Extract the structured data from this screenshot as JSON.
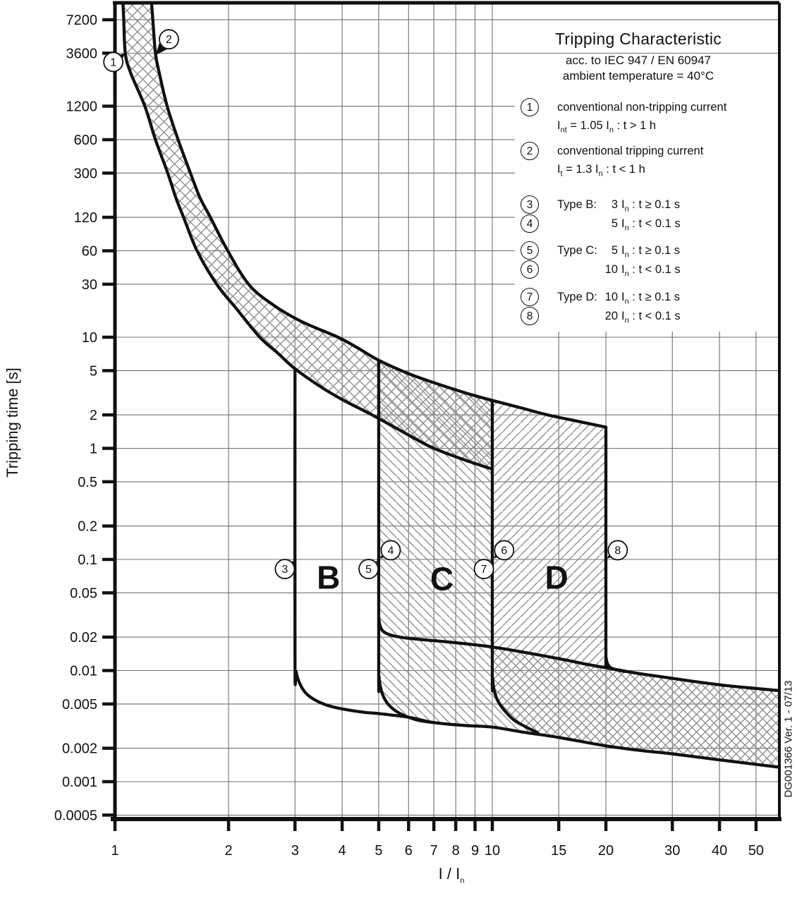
{
  "doc_number": "DG001366 Ver. 1 - 07/13",
  "title_block": {
    "title": "Tripping Characteristic",
    "subtitle_standard": "acc. to IEC 947 / EN 60947",
    "subtitle_temperature": "ambient temperature = 40°C"
  },
  "legend": {
    "items": [
      {
        "kind": "note",
        "num": "1",
        "line1": [
          {
            "t": "conventional non-tripping current"
          }
        ],
        "line2": [
          {
            "t": "I"
          },
          {
            "sub": "nt"
          },
          {
            "t": "  = 1.05 "
          },
          {
            "t": "I"
          },
          {
            "sub": "n"
          },
          {
            "t": " :  t > 1 h"
          }
        ]
      },
      {
        "kind": "note",
        "num": "2",
        "line1": [
          {
            "t": "conventional tripping current"
          }
        ],
        "line2": [
          {
            "t": "I"
          },
          {
            "sub": "t"
          },
          {
            "t": "  = 1.3 "
          },
          {
            "t": "I"
          },
          {
            "sub": "n"
          },
          {
            "t": " :  t < 1 h"
          }
        ]
      },
      {
        "kind": "type",
        "nums": [
          "3",
          "4"
        ],
        "type_label": "Type B:",
        "values": [
          {
            "num": "3",
            "rest": " : t ≥ 0.1 s"
          },
          {
            "num": "5",
            "rest": " : t < 0.1 s"
          }
        ]
      },
      {
        "kind": "type",
        "nums": [
          "5",
          "6"
        ],
        "type_label": "Type C:",
        "values": [
          {
            "num": "5",
            "rest": " : t ≥ 0.1 s"
          },
          {
            "num": "10",
            "rest": " : t < 0.1 s"
          }
        ]
      },
      {
        "kind": "type",
        "nums": [
          "7",
          "8"
        ],
        "type_label": "Type D:",
        "values": [
          {
            "num": "10",
            "rest": " : t ≥ 0.1 s"
          },
          {
            "num": "20",
            "rest": " : t < 0.1 s"
          }
        ]
      }
    ]
  },
  "chart_data": {
    "type": "line",
    "scale": "log-log",
    "title": "Tripping Characteristic",
    "xlabel_main": "I / I",
    "xlabel_sub": "n",
    "ylabel": "Tripping time [s]",
    "x_ticks": [
      "1",
      "2",
      "3",
      "4",
      "5",
      "6",
      "7",
      "8",
      "9",
      "10",
      "15",
      "20",
      "30",
      "40",
      "50"
    ],
    "y_ticks": [
      "7200",
      "3600",
      "1200",
      "600",
      "300",
      "120",
      "60",
      "30",
      "10",
      "5",
      "2",
      "1",
      "0.5",
      "0.2",
      "0.1",
      "0.05",
      "0.02",
      "0.01",
      "0.005",
      "0.002",
      "0.001",
      "0.0005"
    ],
    "x_range": [
      1,
      57.5
    ],
    "y_range": [
      0.00046,
      10200
    ],
    "grid": "major-both",
    "region_letters": [
      {
        "label": "B",
        "x": 3.68,
        "t": 0.069
      },
      {
        "label": "C",
        "x": 7.35,
        "t": 0.067
      },
      {
        "label": "D",
        "x": 14.8,
        "t": 0.069
      }
    ],
    "markers": [
      {
        "n": "1",
        "at": [
          0.99,
          3000
        ],
        "tip": [
          1.068,
          3600
        ]
      },
      {
        "n": "2",
        "at": [
          1.39,
          4800
        ],
        "tip": [
          1.28,
          3450
        ]
      },
      {
        "n": "3",
        "at": [
          2.82,
          0.082
        ],
        "tip": [
          2.99,
          0.0975
        ]
      },
      {
        "n": "4",
        "at": [
          5.38,
          0.121
        ],
        "tip": [
          5.03,
          0.102
        ]
      },
      {
        "n": "5",
        "at": [
          4.7,
          0.082
        ],
        "tip": [
          4.97,
          0.0975
        ]
      },
      {
        "n": "6",
        "at": [
          10.75,
          0.121
        ],
        "tip": [
          10.06,
          0.102
        ]
      },
      {
        "n": "7",
        "at": [
          9.5,
          0.082
        ],
        "tip": [
          9.94,
          0.0975
        ]
      },
      {
        "n": "8",
        "at": [
          21.5,
          0.121
        ],
        "tip": [
          20.12,
          0.102
        ]
      }
    ],
    "series": {
      "thermal_lower": [
        [
          1.05,
          10200
        ],
        [
          1.055,
          7200
        ],
        [
          1.065,
          3600
        ],
        [
          1.1,
          2400
        ],
        [
          1.2,
          1200
        ],
        [
          1.28,
          600
        ],
        [
          1.38,
          300
        ],
        [
          1.45,
          180
        ],
        [
          1.52,
          120
        ],
        [
          1.65,
          60
        ],
        [
          1.86,
          30
        ],
        [
          2.1,
          18
        ],
        [
          2.42,
          10
        ],
        [
          2.7,
          7.2
        ],
        [
          3.0,
          5.2
        ],
        [
          3.5,
          3.6
        ],
        [
          4.0,
          2.75
        ],
        [
          4.8,
          2.0
        ],
        [
          5.6,
          1.5
        ],
        [
          6.3,
          1.2
        ],
        [
          7.0,
          1.0
        ],
        [
          8.5,
          0.78
        ],
        [
          10,
          0.65
        ]
      ],
      "thermal_upper": [
        [
          1.25,
          10200
        ],
        [
          1.26,
          7200
        ],
        [
          1.28,
          3600
        ],
        [
          1.31,
          2400
        ],
        [
          1.375,
          1200
        ],
        [
          1.47,
          600
        ],
        [
          1.585,
          300
        ],
        [
          1.68,
          180
        ],
        [
          1.79,
          120
        ],
        [
          1.99,
          60
        ],
        [
          2.26,
          30
        ],
        [
          2.6,
          20
        ],
        [
          3.1,
          14
        ],
        [
          3.9,
          10
        ],
        [
          4.4,
          8
        ],
        [
          5.0,
          6.2
        ],
        [
          6.0,
          4.7
        ],
        [
          7.0,
          3.9
        ],
        [
          8.5,
          3.15
        ],
        [
          10,
          2.7
        ],
        [
          12,
          2.3
        ],
        [
          14,
          2.0
        ],
        [
          17,
          1.74
        ],
        [
          20,
          1.55
        ]
      ],
      "type_b_boundary": [
        [
          3,
          5.2
        ],
        [
          3,
          0.0125
        ],
        [
          3.02,
          0.0098
        ],
        [
          3.08,
          0.0078
        ],
        [
          3.2,
          0.0063
        ],
        [
          3.4,
          0.0054
        ],
        [
          3.7,
          0.0048
        ],
        [
          4.1,
          0.00445
        ],
        [
          4.6,
          0.0042
        ],
        [
          5,
          0.0041
        ],
        [
          6,
          0.0038
        ],
        [
          7,
          0.0034
        ],
        [
          8.5,
          0.0032
        ],
        [
          10,
          0.0031
        ],
        [
          12,
          0.0028
        ],
        [
          15,
          0.0025
        ],
        [
          20,
          0.0021
        ],
        [
          25,
          0.0019
        ],
        [
          30,
          0.00178
        ],
        [
          40,
          0.00157
        ],
        [
          50,
          0.00143
        ],
        [
          57.5,
          0.00135
        ]
      ],
      "type_c_boundary": [
        [
          5,
          6.2
        ],
        [
          5,
          0.011
        ],
        [
          5.01,
          0.0088
        ],
        [
          5.05,
          0.0072
        ],
        [
          5.15,
          0.0058
        ],
        [
          5.35,
          0.0048
        ],
        [
          5.7,
          0.0041
        ],
        [
          6.3,
          0.0036
        ],
        [
          7,
          0.0034
        ]
      ],
      "type_d_boundary": [
        [
          10,
          2.7
        ],
        [
          10,
          0.0105
        ],
        [
          10.02,
          0.0085
        ],
        [
          10.1,
          0.0068
        ],
        [
          10.3,
          0.0055
        ],
        [
          10.7,
          0.0045
        ],
        [
          11.4,
          0.0036
        ],
        [
          12.3,
          0.0031
        ],
        [
          13.2,
          0.00275
        ]
      ],
      "max_break_boundary": [
        [
          5,
          0.03
        ],
        [
          5.03,
          0.026
        ],
        [
          5.12,
          0.0228
        ],
        [
          5.35,
          0.021
        ],
        [
          5.8,
          0.0198
        ],
        [
          6.5,
          0.019
        ],
        [
          8,
          0.0178
        ],
        [
          10,
          0.0163
        ],
        [
          12,
          0.0147
        ],
        [
          15,
          0.0128
        ],
        [
          18,
          0.0113
        ],
        [
          20,
          0.0106
        ],
        [
          24,
          0.0095
        ],
        [
          28,
          0.0088
        ],
        [
          34,
          0.008
        ],
        [
          42,
          0.0073
        ],
        [
          50,
          0.0069
        ],
        [
          57.5,
          0.0066
        ]
      ],
      "type_d20_boundary": [
        [
          20,
          1.55
        ],
        [
          20,
          0.016
        ],
        [
          20.05,
          0.0128
        ],
        [
          20.2,
          0.0115
        ],
        [
          20.6,
          0.0106
        ],
        [
          21.5,
          0.0101
        ],
        [
          22.5,
          0.0098
        ]
      ]
    }
  },
  "colors": {
    "ink": "#111111",
    "grid": "#707070",
    "hatch": "#8f8f8f",
    "background": "#ffffff"
  }
}
